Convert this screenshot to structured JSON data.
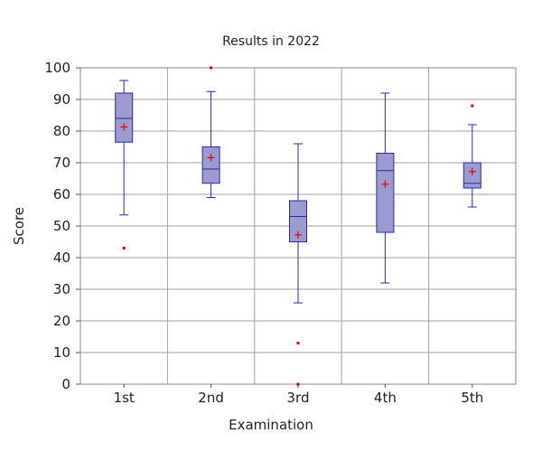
{
  "chart_data": {
    "type": "box",
    "title": "Results in 2022",
    "xlabel": "Examination",
    "ylabel": "Score",
    "ylim": [
      0,
      100
    ],
    "yticks": [
      0,
      10,
      20,
      30,
      40,
      50,
      60,
      70,
      80,
      90,
      100
    ],
    "categories": [
      "1st",
      "2nd",
      "3rd",
      "4th",
      "5th"
    ],
    "grid": true,
    "colors": {
      "box_fill": "#9b9bcf",
      "box_stroke": "#2a2aa8",
      "outlier": "#e00000",
      "mean_marker": "#e00000",
      "grid": "#a0a0a0"
    },
    "boxes": [
      {
        "category": "1st",
        "whisker_low": 53.5,
        "q1": 76.5,
        "median": 84,
        "q3": 92,
        "whisker_high": 96,
        "mean": 81.3,
        "outliers": [
          43
        ]
      },
      {
        "category": "2nd",
        "whisker_low": 59,
        "q1": 63.5,
        "median": 68,
        "q3": 75,
        "whisker_high": 92.5,
        "mean": 71.6,
        "outliers": [
          100
        ]
      },
      {
        "category": "3rd",
        "whisker_low": 25.7,
        "q1": 45,
        "median": 53,
        "q3": 58,
        "whisker_high": 76,
        "mean": 47.2,
        "outliers": [
          13,
          0
        ]
      },
      {
        "category": "4th",
        "whisker_low": 32,
        "q1": 48,
        "median": 67.5,
        "q3": 73,
        "whisker_high": 92,
        "mean": 63.2,
        "outliers": []
      },
      {
        "category": "5th",
        "whisker_low": 56,
        "q1": 62,
        "median": 63.5,
        "q3": 70,
        "whisker_high": 82,
        "mean": 67.2,
        "outliers": [
          88
        ]
      }
    ]
  }
}
